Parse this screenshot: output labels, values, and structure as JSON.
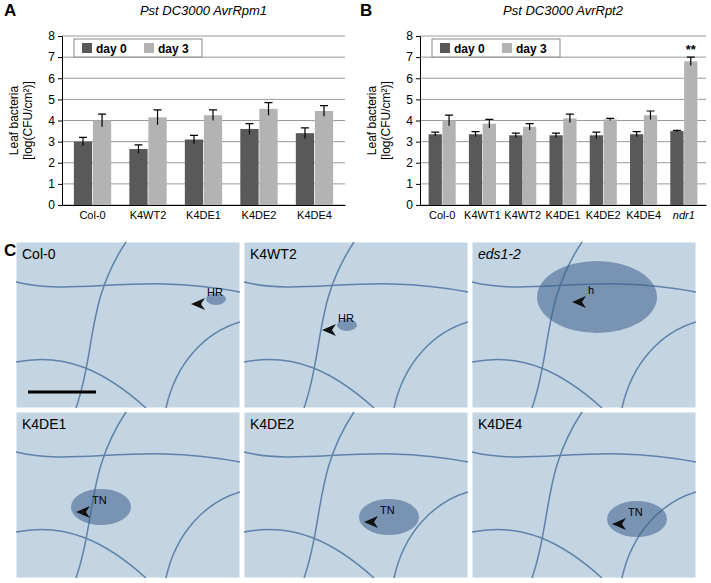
{
  "chart_data": [
    {
      "type": "bar",
      "panel": "A",
      "title": "Pst DC3000 AvrRpm1",
      "y_label": [
        "Leaf bacteria",
        "[log(CFU/cm²)]"
      ],
      "categories": [
        "Col-0",
        "K4WT2",
        "K4DE1",
        "K4DE2",
        "K4DE4"
      ],
      "series": [
        {
          "name": "day 0",
          "color": "#595959",
          "values": [
            3.0,
            2.65,
            3.1,
            3.6,
            3.4
          ],
          "errors": [
            0.2,
            0.2,
            0.2,
            0.25,
            0.25
          ]
        },
        {
          "name": "day 3",
          "color": "#b3b3b3",
          "values": [
            4.0,
            4.15,
            4.25,
            4.55,
            4.45
          ],
          "errors": [
            0.3,
            0.35,
            0.25,
            0.3,
            0.25
          ]
        }
      ],
      "ylim": [
        0,
        8
      ],
      "yticks": [
        0,
        1,
        2,
        3,
        4,
        5,
        6,
        7,
        8
      ],
      "grid": true,
      "legend": "top-left"
    },
    {
      "type": "bar",
      "panel": "B",
      "title": "Pst DC3000 AvrRpt2",
      "y_label": [
        "Leaf bacteria",
        "[log(CFU/cm²)]"
      ],
      "categories": [
        "Col-0",
        "K4WT1",
        "K4WT2",
        "K4DE1",
        "K4DE2",
        "K4DE4",
        "ndr1"
      ],
      "series": [
        {
          "name": "day 0",
          "color": "#595959",
          "values": [
            3.35,
            3.35,
            3.3,
            3.3,
            3.3,
            3.35,
            3.5
          ],
          "errors": [
            0.1,
            0.12,
            0.1,
            0.1,
            0.15,
            0.12,
            0.03
          ]
        },
        {
          "name": "day 3",
          "color": "#b3b3b3",
          "values": [
            4.0,
            3.85,
            3.7,
            4.1,
            4.05,
            4.25,
            6.8
          ],
          "errors": [
            0.25,
            0.2,
            0.15,
            0.2,
            0.05,
            0.2,
            0.2
          ]
        }
      ],
      "annotations": [
        {
          "text": "**",
          "category": "ndr1",
          "series": "day 3"
        }
      ],
      "ylim": [
        0,
        8
      ],
      "yticks": [
        0,
        1,
        2,
        3,
        4,
        5,
        6,
        7,
        8
      ],
      "grid": true,
      "legend": "top-left"
    }
  ],
  "images": {
    "panel": "C",
    "items": [
      {
        "label": "Col-0",
        "annotation": "HR"
      },
      {
        "label": "K4WT2",
        "annotation": "HR"
      },
      {
        "label": "eds1-2",
        "annotation": "h"
      },
      {
        "label": "K4DE1",
        "annotation": "TN"
      },
      {
        "label": "K4DE2",
        "annotation": "TN"
      },
      {
        "label": "K4DE4",
        "annotation": "TN"
      }
    ]
  }
}
